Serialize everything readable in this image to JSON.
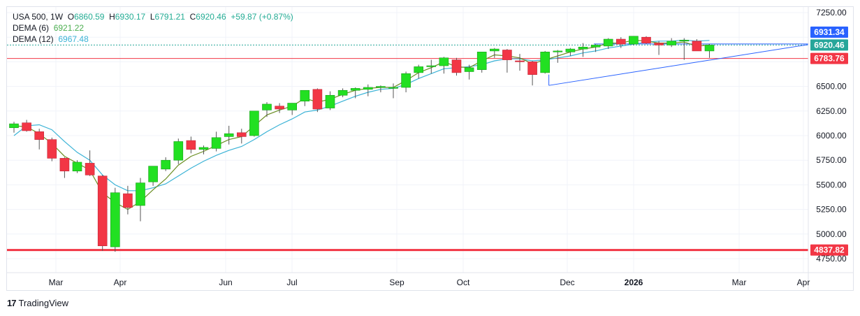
{
  "legend": {
    "symbol": "USA 500",
    "interval": "1W",
    "open_label": "O",
    "open": "6860.59",
    "high_label": "H",
    "high": "6930.17",
    "low_label": "L",
    "low": "6791.21",
    "close_label": "C",
    "close": "6920.46",
    "change": "+59.87 (+0.87%)",
    "dema6_label": "DEMA (6)",
    "dema6_value": "6921.22",
    "dema12_label": "DEMA (12)",
    "dema12_value": "6967.48"
  },
  "footer": {
    "brand": "TradingView",
    "logo": "17"
  },
  "colors": {
    "up": "#22e022",
    "down": "#f23645",
    "grid": "#f0f3fa",
    "dema6": "#6b8e23",
    "dema12": "#3bb3d6",
    "trend": "#2962ff",
    "resistance": "#f23645",
    "current": "#26a69a"
  },
  "chart_data": {
    "type": "candlestick",
    "title": "USA 500, 1W",
    "ylim": [
      4650,
      7350
    ],
    "yticks": [
      "7250.00",
      "6500.00",
      "6250.00",
      "6000.00",
      "5750.00",
      "5500.00",
      "5250.00",
      "5000.00",
      "4750.00"
    ],
    "xticks": [
      "Mar",
      "Apr",
      "Jun",
      "Jul",
      "Sep",
      "Oct",
      "Dec",
      "2026",
      "Mar",
      "Apr"
    ],
    "price_labels": {
      "resistance_top": "6931.34",
      "current": "6920.46",
      "support_mid": "6783.76",
      "support_low": "4837.82"
    },
    "levels": {
      "resistance_top": 6931.34,
      "current": 6920.46,
      "support_mid": 6783.76,
      "support_low": 4837.82
    },
    "candles": [
      [
        6080,
        6140,
        6030,
        6120
      ],
      [
        6130,
        6160,
        6040,
        6050
      ],
      [
        6040,
        6070,
        5860,
        5960
      ],
      [
        5960,
        5980,
        5740,
        5770
      ],
      [
        5770,
        5780,
        5570,
        5640
      ],
      [
        5640,
        5750,
        5620,
        5730
      ],
      [
        5720,
        5850,
        5590,
        5600
      ],
      [
        5590,
        5600,
        4830,
        4880
      ],
      [
        4870,
        5470,
        4820,
        5420
      ],
      [
        5410,
        5490,
        5200,
        5270
      ],
      [
        5290,
        5570,
        5130,
        5520
      ],
      [
        5530,
        5680,
        5490,
        5690
      ],
      [
        5660,
        5780,
        5640,
        5750
      ],
      [
        5750,
        5970,
        5710,
        5940
      ],
      [
        5950,
        5990,
        5820,
        5860
      ],
      [
        5860,
        5900,
        5810,
        5880
      ],
      [
        5870,
        6040,
        5840,
        5980
      ],
      [
        5990,
        6100,
        5910,
        6020
      ],
      [
        6030,
        6070,
        5920,
        5990
      ],
      [
        6000,
        6240,
        5990,
        6250
      ],
      [
        6260,
        6340,
        6190,
        6320
      ],
      [
        6300,
        6330,
        6230,
        6270
      ],
      [
        6260,
        6310,
        6210,
        6330
      ],
      [
        6350,
        6460,
        6300,
        6460
      ],
      [
        6470,
        6480,
        6240,
        6270
      ],
      [
        6280,
        6450,
        6260,
        6410
      ],
      [
        6410,
        6480,
        6390,
        6460
      ],
      [
        6460,
        6490,
        6380,
        6480
      ],
      [
        6470,
        6520,
        6400,
        6490
      ],
      [
        6490,
        6510,
        6440,
        6500
      ],
      [
        6480,
        6530,
        6380,
        6490
      ],
      [
        6490,
        6650,
        6440,
        6630
      ],
      [
        6640,
        6720,
        6580,
        6700
      ],
      [
        6700,
        6770,
        6630,
        6710
      ],
      [
        6710,
        6800,
        6630,
        6790
      ],
      [
        6770,
        6790,
        6610,
        6640
      ],
      [
        6650,
        6720,
        6570,
        6690
      ],
      [
        6670,
        6840,
        6640,
        6850
      ],
      [
        6860,
        6890,
        6790,
        6880
      ],
      [
        6870,
        6880,
        6640,
        6770
      ],
      [
        6760,
        6830,
        6660,
        6750
      ],
      [
        6750,
        6760,
        6510,
        6620
      ],
      [
        6640,
        6860,
        6630,
        6850
      ],
      [
        6850,
        6870,
        6740,
        6860
      ],
      [
        6850,
        6890,
        6810,
        6880
      ],
      [
        6880,
        6940,
        6800,
        6900
      ],
      [
        6900,
        6930,
        6850,
        6920
      ],
      [
        6910,
        6990,
        6880,
        6980
      ],
      [
        6980,
        7000,
        6890,
        6930
      ],
      [
        6930,
        7010,
        6920,
        7010
      ],
      [
        7000,
        7010,
        6930,
        6940
      ],
      [
        6940,
        6960,
        6820,
        6920
      ],
      [
        6920,
        6990,
        6900,
        6960
      ],
      [
        6960,
        6990,
        6770,
        6970
      ],
      [
        6960,
        6980,
        6870,
        6860
      ],
      [
        6860,
        6930,
        6790,
        6920
      ]
    ],
    "dema6": [
      6100,
      6090,
      6020,
      5920,
      5790,
      5720,
      5650,
      5420,
      5320,
      5250,
      5330,
      5450,
      5560,
      5700,
      5790,
      5840,
      5900,
      5960,
      5990,
      6100,
      6210,
      6260,
      6300,
      6380,
      6340,
      6370,
      6420,
      6460,
      6480,
      6490,
      6490,
      6560,
      6640,
      6690,
      6750,
      6700,
      6690,
      6760,
      6820,
      6810,
      6790,
      6730,
      6770,
      6810,
      6850,
      6880,
      6900,
      6940,
      6940,
      6970,
      6960,
      6940,
      6940,
      6950,
      6910,
      6921
    ],
    "dema12": [
      6000,
      6100,
      6110,
      6060,
      5940,
      5830,
      5750,
      5600,
      5500,
      5440,
      5440,
      5470,
      5510,
      5590,
      5670,
      5740,
      5800,
      5850,
      5890,
      5960,
      6040,
      6110,
      6170,
      6240,
      6260,
      6300,
      6350,
      6400,
      6440,
      6470,
      6480,
      6520,
      6580,
      6630,
      6680,
      6690,
      6700,
      6720,
      6760,
      6780,
      6780,
      6760,
      6770,
      6790,
      6810,
      6840,
      6860,
      6890,
      6910,
      6930,
      6950,
      6960,
      6960,
      6970,
      6960,
      6967
    ]
  }
}
